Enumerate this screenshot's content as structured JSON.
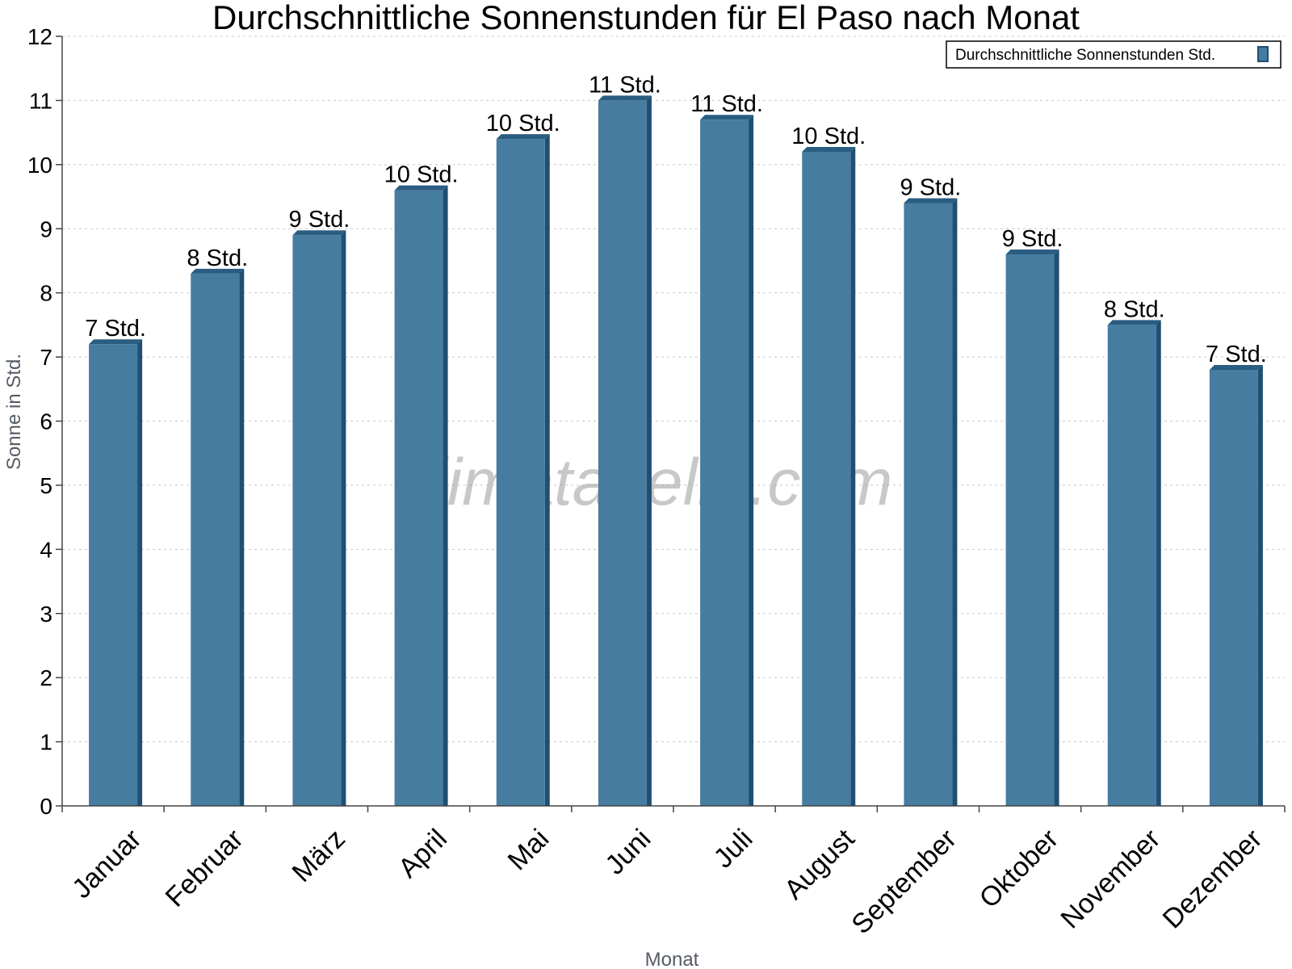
{
  "chart_data": {
    "type": "bar",
    "title": "Durchschnittliche Sonnenstunden für El Paso nach Monat",
    "xlabel": "Monat",
    "ylabel": "Sonne in Std.",
    "ylim": [
      0,
      12
    ],
    "yticks": [
      "0",
      "1",
      "2",
      "3",
      "4",
      "5",
      "6",
      "7",
      "8",
      "9",
      "10",
      "11",
      "12"
    ],
    "grid": true,
    "legend_position": "top-right",
    "watermark": "klimatabelle.com",
    "colors": {
      "bar": "#467ca0",
      "bar_side": "#1f4f72",
      "bar_top": "#2b5d82"
    },
    "categories": [
      "Januar",
      "Februar",
      "März",
      "April",
      "Mai",
      "Juni",
      "Juli",
      "August",
      "September",
      "Oktober",
      "November",
      "Dezember"
    ],
    "series": [
      {
        "name": "Durchschnittliche Sonnenstunden Std.",
        "values": [
          7.2,
          8.3,
          8.9,
          9.6,
          10.4,
          11.0,
          10.7,
          10.2,
          9.4,
          8.6,
          7.5,
          6.8
        ],
        "labels": [
          "7 Std.",
          "8 Std.",
          "9 Std.",
          "10 Std.",
          "10 Std.",
          "11 Std.",
          "11 Std.",
          "10 Std.",
          "9 Std.",
          "9 Std.",
          "8 Std.",
          "7 Std."
        ]
      }
    ]
  }
}
